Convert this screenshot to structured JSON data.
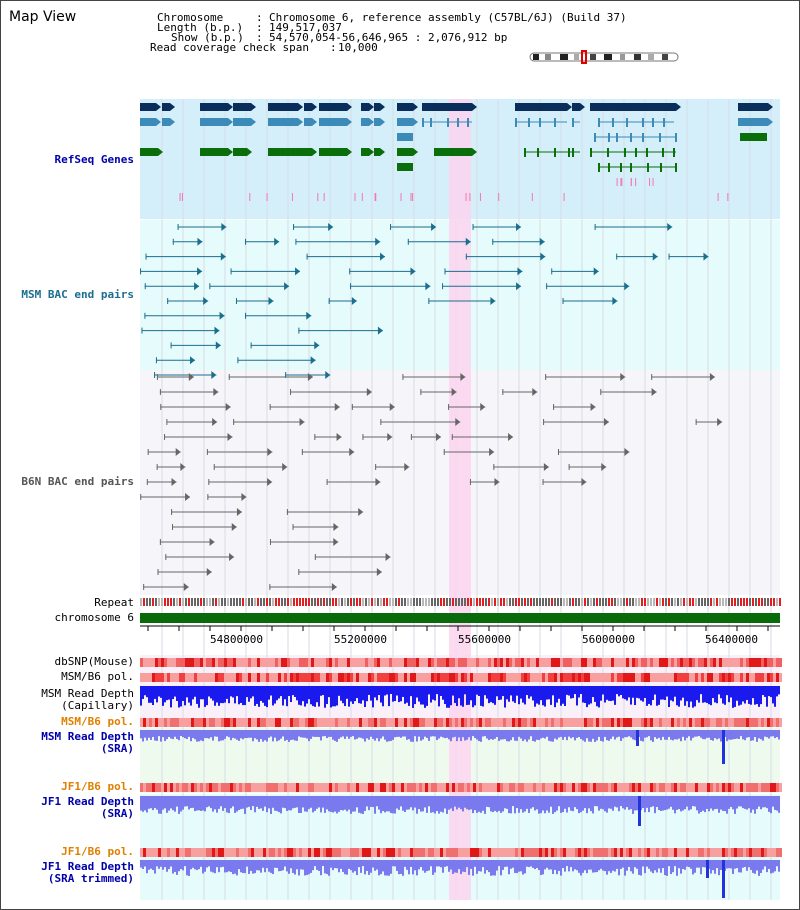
{
  "title": "Map View",
  "info": {
    "chromosome_label": "Chromosome",
    "chromosome_value": "Chromosome 6, reference assembly (C57BL/6J) (Build 37)",
    "length_label": "Length (b.p.)",
    "length_value": "149,517,037",
    "show_label": "Show (b.p.)",
    "show_value": "54,570,054-56,646,965 : 2,076,912 bp",
    "span_label": "Read coverage check span",
    "span_value": "10,000"
  },
  "tracks": {
    "refseq": "RefSeq Genes",
    "msm_bac": "MSM BAC end pairs",
    "b6n_bac": "B6N BAC end pairs",
    "repeat": "Repeat",
    "chromosome": "chromosome 6",
    "dbsnp": "dbSNP(Mouse)",
    "msm_b6_pol_1": "MSM/B6 pol.",
    "msm_depth_cap_1": "MSM Read Depth",
    "msm_depth_cap_2": "(Capillary)",
    "msm_b6_pol_2": "MSM/B6 pol.",
    "msm_depth_sra_1": "MSM Read Depth",
    "msm_depth_sra_2": "(SRA)",
    "jf1_b6_pol_1": "JF1/B6 pol.",
    "jf1_depth_sra_1": "JF1 Read Depth",
    "jf1_depth_sra_2": "(SRA)",
    "jf1_b6_pol_2": "JF1/B6 pol.",
    "jf1_depth_trim_1": "JF1 Read Depth",
    "jf1_depth_trim_2": "(SRA trimmed)"
  },
  "axis_ticks": [
    "54800000",
    "55200000",
    "55600000",
    "56000000",
    "56400000"
  ],
  "colors": {
    "refseq_bg": "#d4eefa",
    "bac_bg": "#e6fbfb",
    "highlight": "#fbd5ee",
    "gene_dark": "#0a2e5c",
    "gene_mid": "#3b8ab8",
    "gene_green": "#0a6e0a",
    "msm_pair": "#1a6e8e",
    "b6n_pair": "#666666",
    "chromosome_bar": "#086a08",
    "depth_dark": "#1a1aee",
    "depth_light": "#7a7aee"
  }
}
